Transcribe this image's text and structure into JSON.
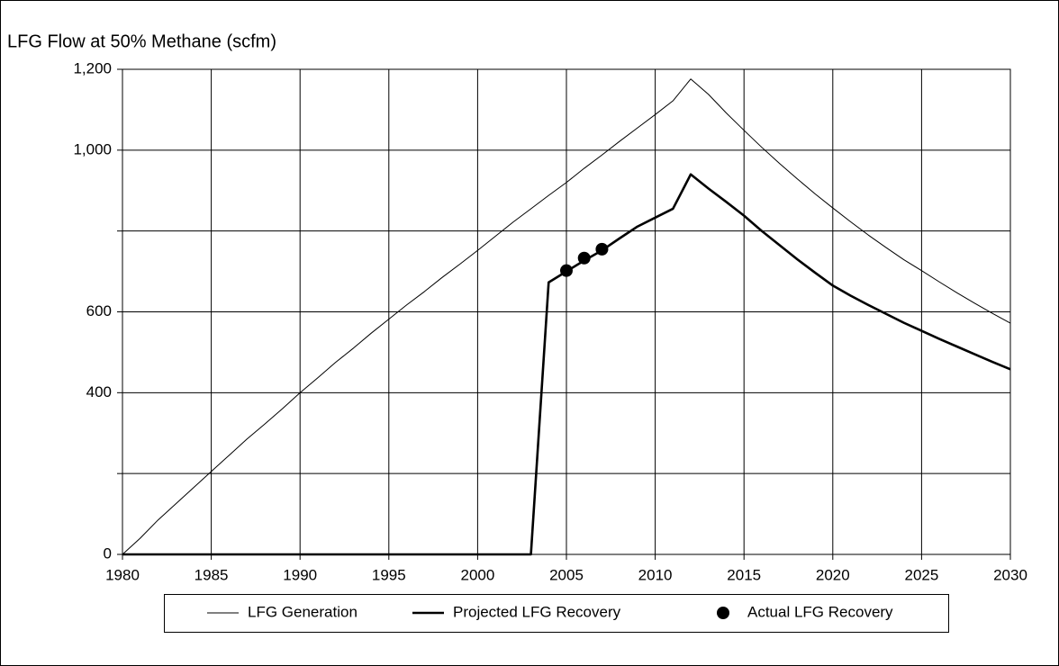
{
  "chart_data": {
    "type": "line",
    "title": "LFG Flow at 50% Methane (scfm)",
    "xlim": [
      1980,
      2030
    ],
    "xticks": [
      1980,
      1985,
      1990,
      1995,
      2000,
      2005,
      2010,
      2015,
      2020,
      2025,
      2030
    ],
    "ylim": [
      0,
      1200
    ],
    "yticks": [
      0,
      400,
      600,
      {
        "value": 1000,
        "label": "1,000"
      },
      {
        "value": 1200,
        "label": "1,200"
      }
    ],
    "ygrid": [
      0,
      200,
      400,
      600,
      800,
      1000,
      1200
    ],
    "grid": true,
    "legend": "bottom",
    "series": [
      {
        "name": "LFG Generation",
        "color": "#000000",
        "style": "thin",
        "x": [
          1980,
          1981,
          1982,
          1983,
          1984,
          1985,
          1986,
          1987,
          1988,
          1989,
          1990,
          1991,
          1992,
          1993,
          1994,
          1995,
          1996,
          1997,
          1998,
          1999,
          2000,
          2001,
          2002,
          2003,
          2004,
          2005,
          2006,
          2007,
          2008,
          2009,
          2010,
          2011,
          2012,
          2013,
          2014,
          2015,
          2016,
          2017,
          2018,
          2019,
          2020,
          2021,
          2022,
          2023,
          2024,
          2025,
          2026,
          2027,
          2028,
          2029,
          2030
        ],
        "values": [
          0,
          40,
          85,
          125,
          165,
          205,
          245,
          285,
          322,
          360,
          400,
          437,
          475,
          510,
          547,
          582,
          617,
          650,
          685,
          718,
          752,
          787,
          822,
          855,
          888,
          920,
          955,
          988,
          1022,
          1055,
          1088,
          1122,
          1176,
          1138,
          1092,
          1049,
          1007,
          967,
          929,
          892,
          857,
          823,
          790,
          759,
          729,
          702,
          674,
          647,
          621,
          596,
          572
        ]
      },
      {
        "name": "Projected LFG Recovery",
        "color": "#000000",
        "style": "thick",
        "x": [
          1980,
          1985,
          1990,
          1995,
          2000,
          2003,
          2004,
          2005,
          2006,
          2007,
          2008,
          2009,
          2010,
          2011,
          2012,
          2013,
          2014,
          2015,
          2016,
          2017,
          2018,
          2019,
          2020,
          2021,
          2022,
          2023,
          2024,
          2025,
          2026,
          2027,
          2028,
          2029,
          2030
        ],
        "values": [
          0,
          0,
          0,
          0,
          0,
          0,
          673,
          700,
          727,
          752,
          782,
          811,
          833,
          855,
          940,
          905,
          872,
          838,
          800,
          765,
          730,
          697,
          665,
          640,
          617,
          595,
          573,
          553,
          533,
          514,
          495,
          476,
          458
        ]
      },
      {
        "name": "Actual LFG Recovery",
        "color": "#000000",
        "style": "marker",
        "x": [
          2005,
          2006,
          2007
        ],
        "values": [
          702,
          733,
          755
        ]
      }
    ]
  }
}
